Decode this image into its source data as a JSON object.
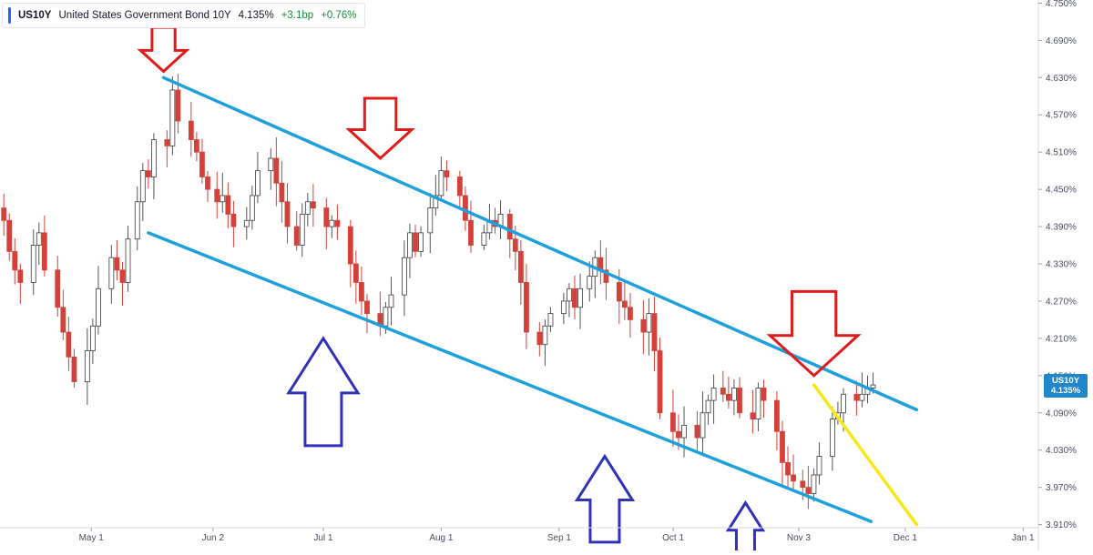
{
  "legend": {
    "symbol": "US10Y",
    "name": "United States Government Bond 10Y",
    "price": "4.135%",
    "change_bp": "+3.1bp",
    "change_pct": "+0.76%"
  },
  "price_tag": {
    "symbol": "US10Y",
    "value": "4.135%"
  },
  "colors": {
    "up": "#ffffff",
    "up_border": "#3a3a3a",
    "down": "#d4413a",
    "channel": "#1ea0dd",
    "projection": "#f7e81a",
    "arrow_red": "#e01b1b",
    "arrow_blue": "#3030b8",
    "tag": "#1f86c9"
  },
  "chart_data": {
    "type": "candlestick",
    "x_tick_labels": [
      "May 1",
      "Jun 2",
      "Jul 1",
      "Aug 1",
      "Sep 1",
      "Oct 1",
      "Nov 3",
      "Dec 1",
      "Jan 1"
    ],
    "y_tick_labels": [
      "4.750%",
      "4.690%",
      "4.630%",
      "4.570%",
      "4.510%",
      "4.450%",
      "4.390%",
      "4.330%",
      "4.270%",
      "4.210%",
      "4.150%",
      "4.090%",
      "4.030%",
      "3.970%",
      "3.910%"
    ],
    "ylim": [
      3.905,
      4.755
    ],
    "y_ticks": [
      4.75,
      4.69,
      4.63,
      4.57,
      4.51,
      4.45,
      4.39,
      4.33,
      4.27,
      4.21,
      4.15,
      4.09,
      4.03,
      3.97,
      3.91
    ],
    "x_ticks": [
      "2024-05-01",
      "2024-06-02",
      "2024-07-01",
      "2024-08-01",
      "2024-09-01",
      "2024-10-01",
      "2024-11-03",
      "2024-12-01",
      "2025-01-01"
    ],
    "xlim": [
      "2024-04-07",
      "2025-01-05"
    ],
    "last_value": 4.135,
    "closes_approx": [
      4.4,
      4.35,
      4.32,
      4.3,
      4.36,
      4.38,
      4.32,
      4.26,
      4.22,
      4.18,
      4.14,
      4.19,
      4.23,
      4.29,
      4.34,
      4.32,
      4.3,
      4.37,
      4.43,
      4.48,
      4.47,
      4.53,
      4.52,
      4.61,
      4.56,
      4.53,
      4.51,
      4.47,
      4.45,
      4.43,
      4.44,
      4.41,
      4.39,
      4.4,
      4.44,
      4.48,
      4.5,
      4.46,
      4.43,
      4.39,
      4.36,
      4.41,
      4.43,
      4.42,
      4.39,
      4.4,
      4.39,
      4.33,
      4.3,
      4.27,
      4.25,
      4.23,
      4.26,
      4.28,
      4.34,
      4.38,
      4.35,
      4.38,
      4.42,
      4.44,
      4.48,
      4.47,
      4.44,
      4.4,
      4.36,
      4.38,
      4.4,
      4.39,
      4.41,
      4.37,
      4.35,
      4.3,
      4.22,
      4.2,
      4.23,
      4.25,
      4.27,
      4.29,
      4.26,
      4.29,
      4.31,
      4.34,
      4.32,
      4.3,
      4.27,
      4.26,
      4.24,
      4.22,
      4.25,
      4.19,
      4.09,
      4.06,
      4.05,
      4.07,
      4.05,
      4.09,
      4.11,
      4.13,
      4.12,
      4.11,
      4.13,
      4.09,
      4.08,
      4.13,
      4.11,
      4.06,
      4.01,
      3.99,
      3.98,
      3.97,
      3.96,
      3.99,
      4.02,
      4.08,
      4.09,
      4.12,
      4.11,
      4.12,
      4.13,
      4.135
    ],
    "annotations": {
      "upper_channel": [
        [
          "2024-05-20",
          4.63
        ],
        [
          "2024-12-04",
          4.095
        ]
      ],
      "lower_channel": [
        [
          "2024-05-16",
          4.38
        ],
        [
          "2024-11-22",
          3.915
        ]
      ],
      "projection": [
        [
          "2024-11-07",
          4.135
        ],
        [
          "2024-12-04",
          3.91
        ]
      ],
      "down_arrows": [
        [
          "2024-05-20",
          4.64
        ],
        [
          "2024-07-16",
          4.5
        ],
        [
          "2024-11-07",
          4.15
        ]
      ],
      "up_arrows": [
        [
          "2024-07-01",
          4.21
        ],
        [
          "2024-09-13",
          4.02
        ],
        [
          "2024-10-20",
          3.945
        ]
      ]
    }
  }
}
